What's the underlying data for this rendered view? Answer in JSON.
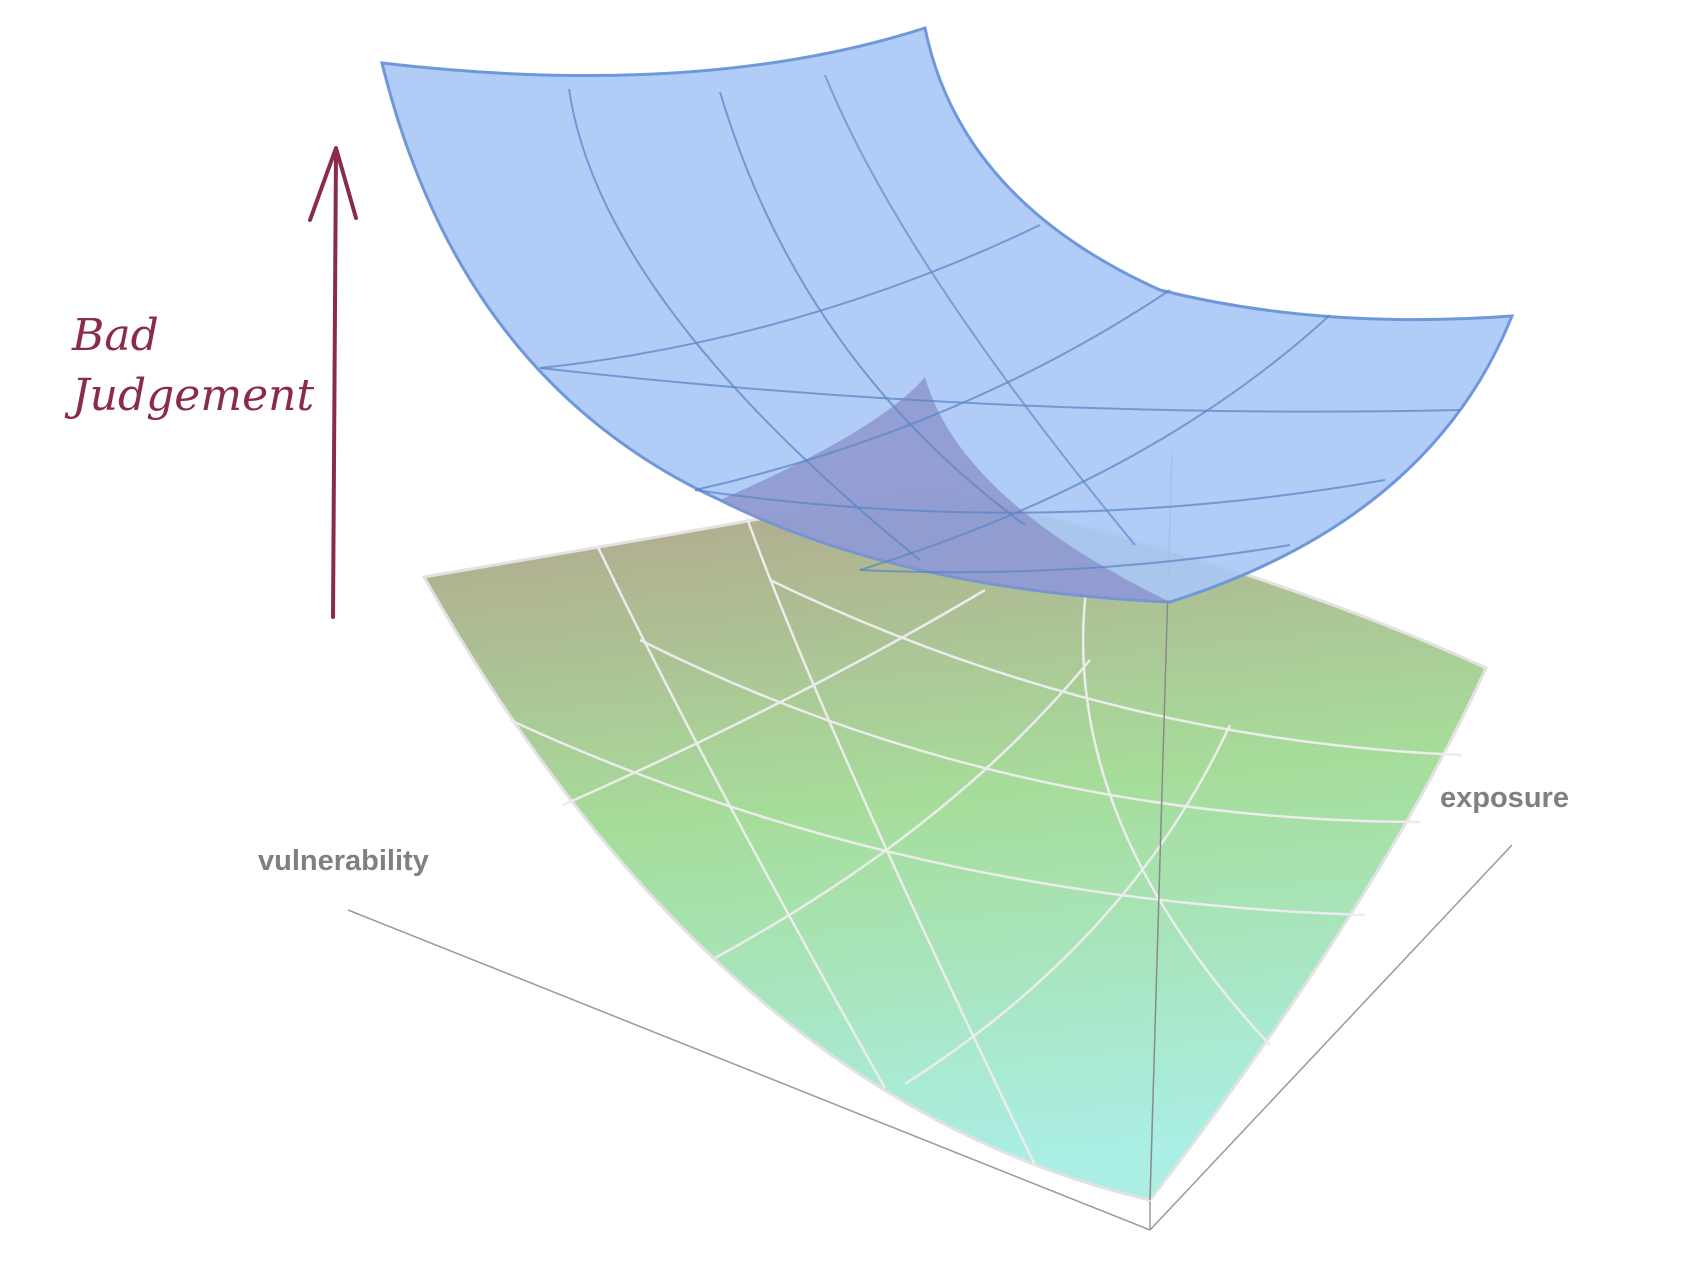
{
  "annotation": {
    "line1": "Bad",
    "line2": "Judgement",
    "color": "#8b2a4f"
  },
  "axes": {
    "vulnerability": "vulnerability",
    "exposure": "exposure",
    "label_color": "#808080"
  },
  "colors": {
    "upper_surface_fill": "#a8c8f6",
    "upper_surface_stroke": "#6f98da",
    "lower_surface_top": "#b4a58e",
    "lower_surface_mid": "#a6dd9a",
    "lower_surface_bottom": "#aaeee4",
    "lower_grid": "#ececec"
  }
}
